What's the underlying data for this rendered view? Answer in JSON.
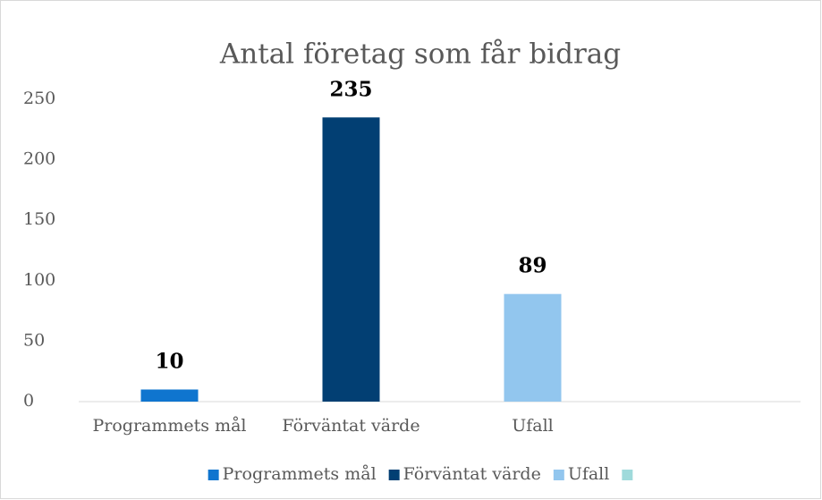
{
  "chart_data": {
    "type": "bar",
    "title": "Antal företag som får bidrag",
    "categories": [
      "Programmets mål",
      "Förväntat värde",
      "Ufall",
      null
    ],
    "values": [
      10,
      235,
      89,
      null
    ],
    "colors": [
      "#0f75cf",
      "#023f73",
      "#92c6ee",
      "#9fdadb"
    ],
    "ylim": [
      0,
      250
    ],
    "yticks": [
      0,
      50,
      100,
      150,
      200,
      250
    ],
    "grid": false,
    "data_labels": true,
    "legend": "bottom"
  }
}
